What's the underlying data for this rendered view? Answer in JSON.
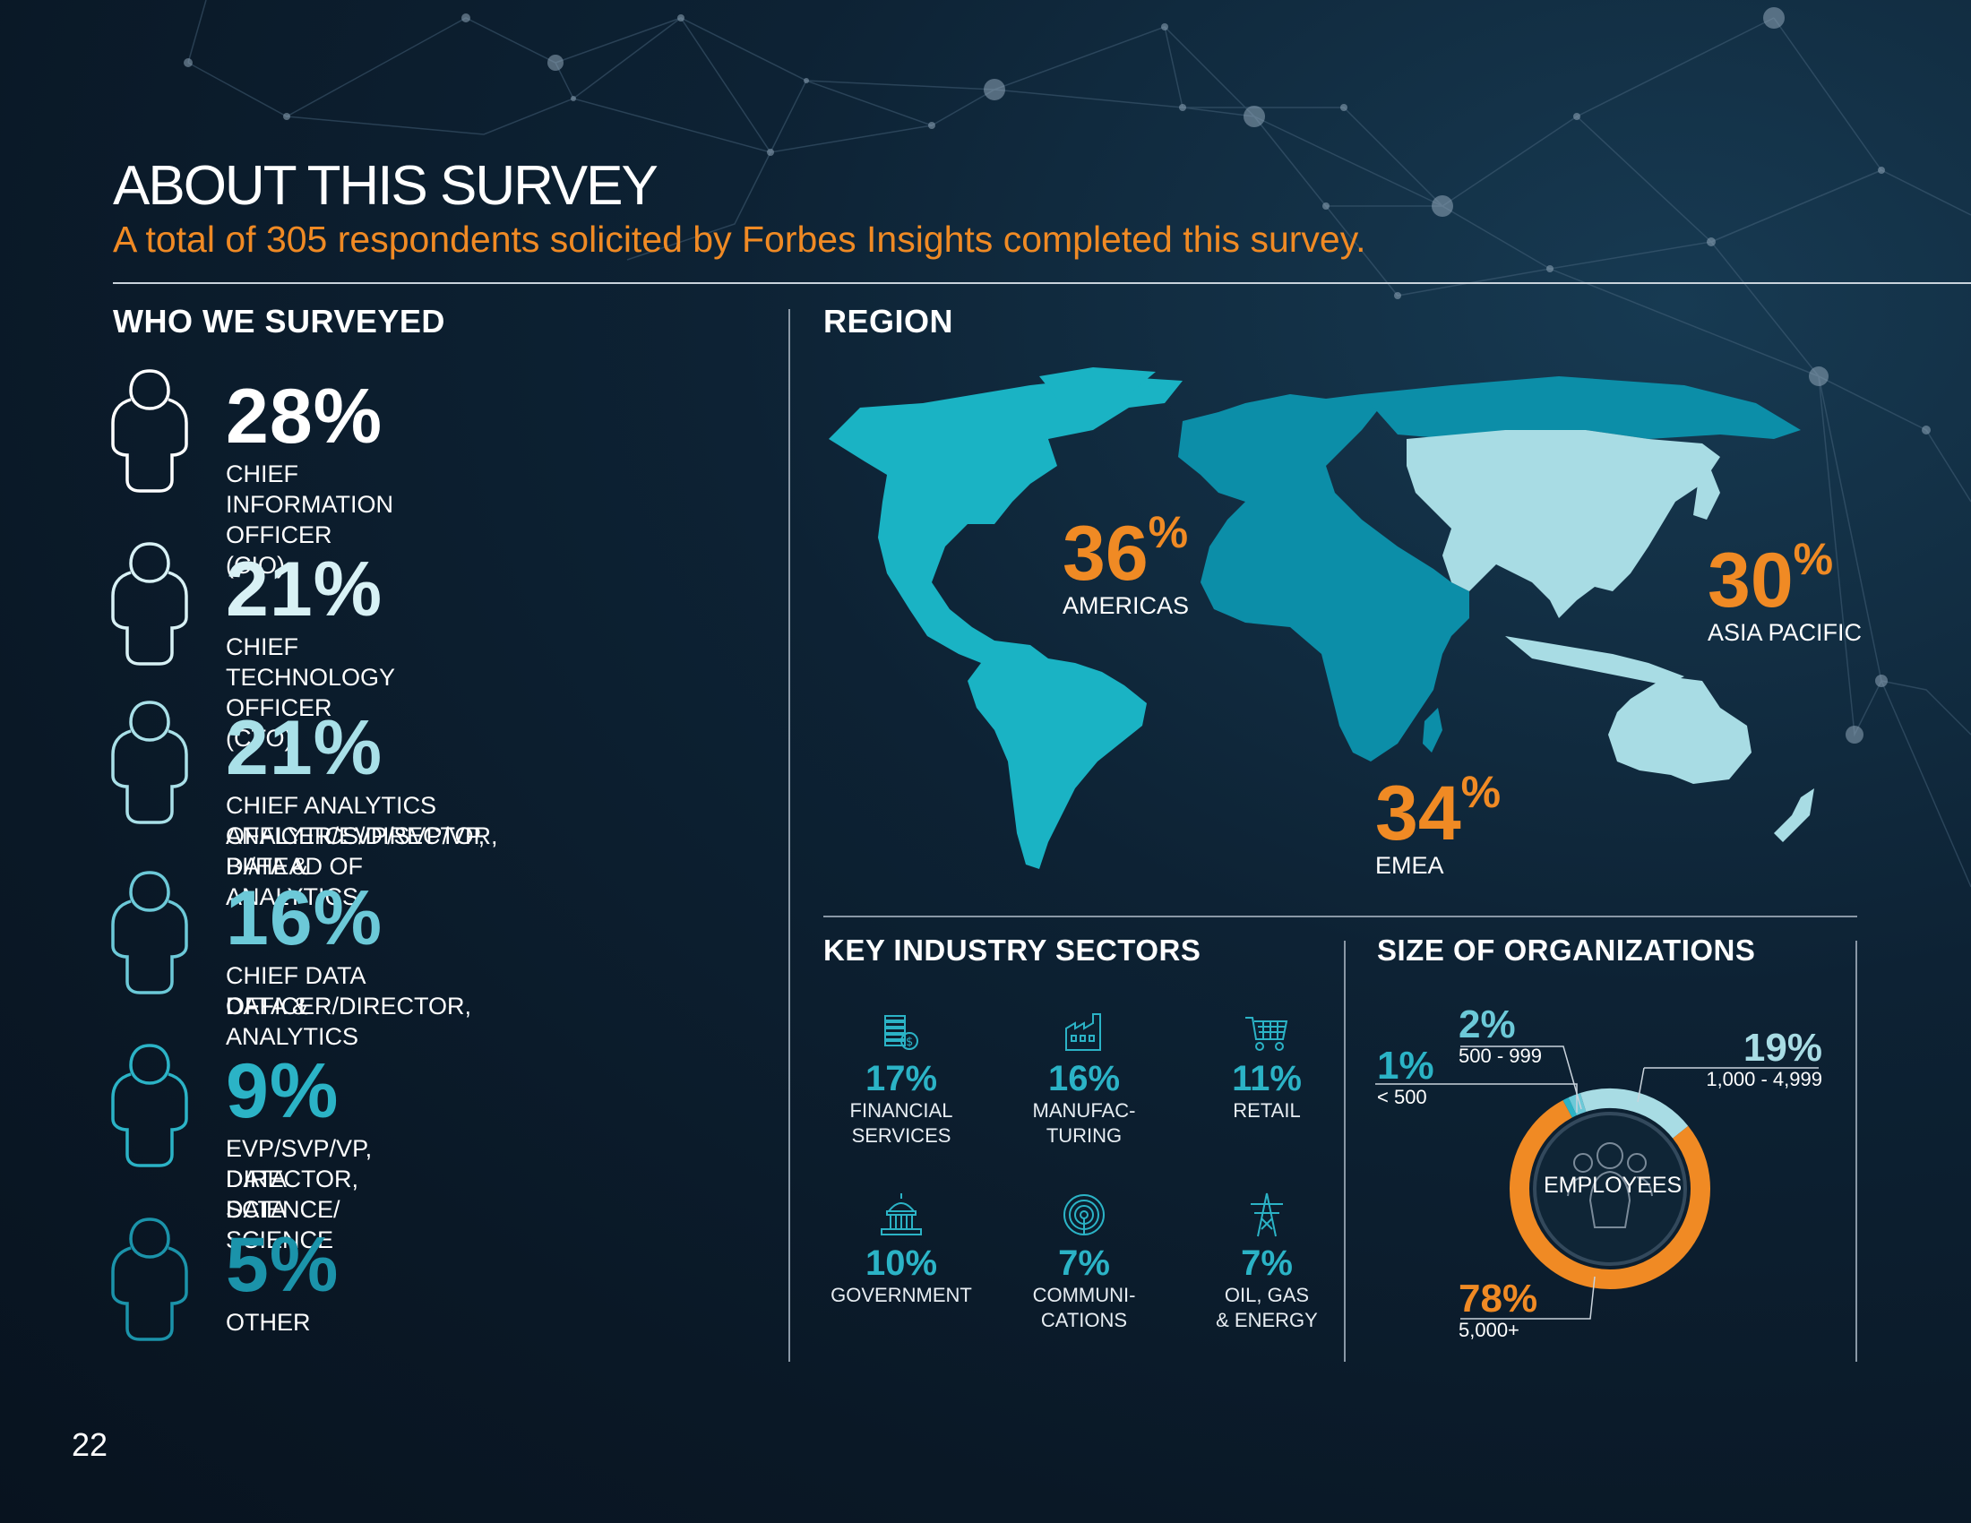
{
  "page": {
    "title": "ABOUT THIS SURVEY",
    "subtitle": "A total of 305 respondents solicited by Forbes Insights completed this survey.",
    "page_number": "22"
  },
  "surveyed": {
    "heading": "WHO WE SURVEYED",
    "items": [
      {
        "pct": "28%",
        "label1": "CHIEF INFORMATION OFFICER (CIO)",
        "label2": "",
        "color": "#ffffff"
      },
      {
        "pct": "21%",
        "label1": "CHIEF TECHNOLOGY OFFICER (CTO)",
        "label2": "",
        "color": "#d8f1f5"
      },
      {
        "pct": "21%",
        "label1": "CHIEF ANALYTICS OFFICER/EVP/SVP/VP, DATA &",
        "label2": "ANALYTICS/DIRECTOR, BI/HEAD OF ANALYTICS",
        "color": "#a9e0e8"
      },
      {
        "pct": "16%",
        "label1": "CHIEF DATA OFFICER/DIRECTOR,",
        "label2": "DATA & ANALYTICS",
        "color": "#6cc9d8"
      },
      {
        "pct": "9%",
        "label1": "EVP/SVP/VP, DATA SCIENCE/",
        "label2": "DIRECTOR, DATA SCIENCE",
        "color": "#2bb3c6"
      },
      {
        "pct": "5%",
        "label1": "OTHER",
        "label2": "",
        "color": "#1b93aa"
      }
    ]
  },
  "region": {
    "heading": "REGION",
    "americas": {
      "num": "36",
      "sign": "%",
      "label": "AMERICAS",
      "color": "#1ab3c4"
    },
    "emea": {
      "num": "34",
      "sign": "%",
      "label": "EMEA",
      "color": "#0c8ea8"
    },
    "apac": {
      "num": "30",
      "sign": "%",
      "label": "ASIA PACIFIC",
      "color": "#a8dce4"
    }
  },
  "industry": {
    "heading": "KEY INDUSTRY SECTORS",
    "items": [
      {
        "pct": "17%",
        "label1": "FINANCIAL",
        "label2": "SERVICES",
        "icon": "money-stack-icon"
      },
      {
        "pct": "16%",
        "label1": "MANUFAC-",
        "label2": "TURING",
        "icon": "factory-icon"
      },
      {
        "pct": "11%",
        "label1": "RETAIL",
        "label2": "",
        "icon": "shopping-cart-icon"
      },
      {
        "pct": "10%",
        "label1": "GOVERNMENT",
        "label2": "",
        "icon": "capitol-building-icon"
      },
      {
        "pct": "7%",
        "label1": "COMMUNI-",
        "label2": "CATIONS",
        "icon": "broadcast-signal-icon"
      },
      {
        "pct": "7%",
        "label1": "OIL, GAS",
        "label2": "& ENERGY",
        "icon": "power-tower-icon"
      }
    ]
  },
  "orgsize": {
    "heading": "SIZE OF ORGANIZATIONS",
    "center_label": "EMPLOYEES",
    "segments": [
      {
        "pct": "1%",
        "label": "< 500",
        "value": 1,
        "color": "#2bb3c6"
      },
      {
        "pct": "2%",
        "label": "500 - 999",
        "value": 2,
        "color": "#6cc9d8"
      },
      {
        "pct": "19%",
        "label": "1,000 - 4,999",
        "value": 19,
        "color": "#a8dce4"
      },
      {
        "pct": "78%",
        "label": "5,000+",
        "value": 78,
        "color": "#f08a24"
      }
    ]
  },
  "colors": {
    "accent_orange": "#f08a24",
    "teal": "#2bb3c6",
    "background": "#0d2234"
  }
}
